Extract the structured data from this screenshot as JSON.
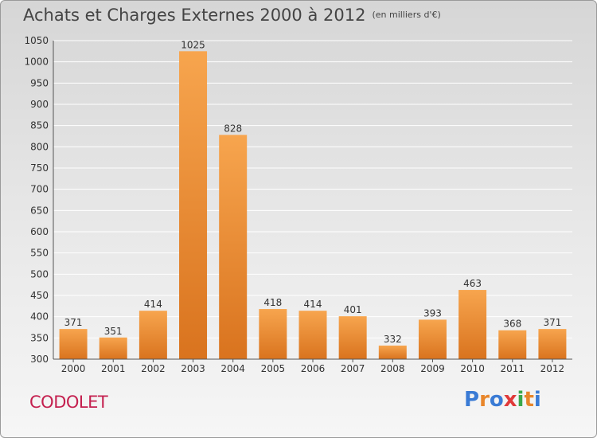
{
  "header": {
    "title": "Achats et Charges Externes 2000 à 2012",
    "subtitle": "(en milliers d'€)"
  },
  "footer": {
    "commune": "CODOLET",
    "brand": "Proxiti",
    "brand_letters": [
      {
        "ch": "P",
        "color": "#3a7bd5"
      },
      {
        "ch": "r",
        "color": "#e8862a"
      },
      {
        "ch": "o",
        "color": "#3a7bd5"
      },
      {
        "ch": "x",
        "color": "#e03a3a"
      },
      {
        "ch": "i",
        "color": "#3aa84a"
      },
      {
        "ch": "t",
        "color": "#e8862a"
      },
      {
        "ch": "i",
        "color": "#3a7bd5"
      }
    ]
  },
  "colors": {
    "bar_light": "#f7a54e",
    "bar_dark": "#d9731e",
    "grid": "#ffffff",
    "axis": "#555555"
  },
  "chart_data": {
    "type": "bar",
    "categories": [
      "2000",
      "2001",
      "2002",
      "2003",
      "2004",
      "2005",
      "2006",
      "2007",
      "2008",
      "2009",
      "2010",
      "2011",
      "2012"
    ],
    "values": [
      371,
      351,
      414,
      1025,
      828,
      418,
      414,
      401,
      332,
      393,
      463,
      368,
      371
    ],
    "ylim": [
      300,
      1050
    ],
    "yticks": [
      300,
      350,
      400,
      450,
      500,
      550,
      600,
      650,
      700,
      750,
      800,
      850,
      900,
      950,
      1000,
      1050
    ],
    "grid": true,
    "data_labels": true
  }
}
